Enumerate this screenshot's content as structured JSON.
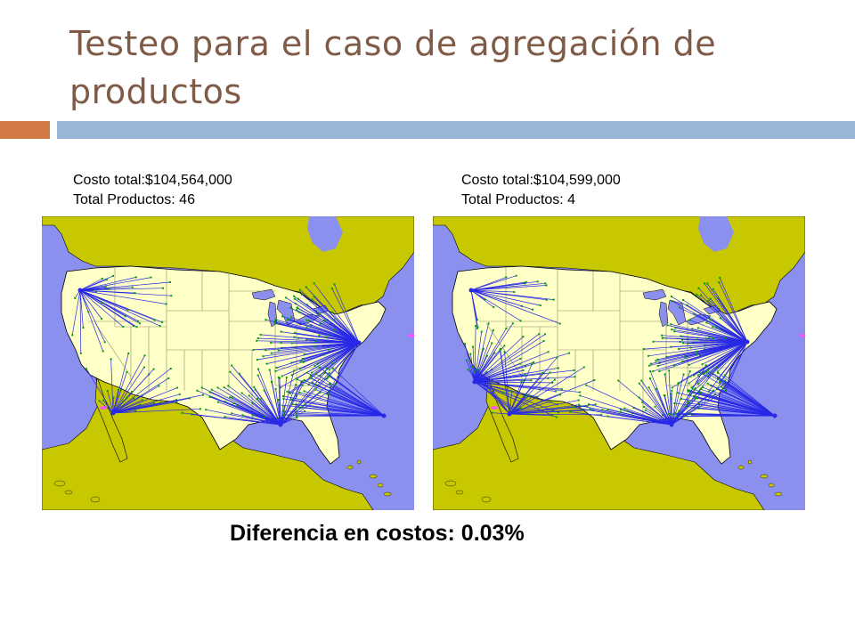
{
  "slide": {
    "title": "Testeo para el caso de agregación de productos",
    "difference_text": "Diferencia en costos: 0.03%"
  },
  "maps": [
    {
      "cost_label": "Costo total:$104,564,000",
      "products_label": "Total Productos: 46",
      "hubs": [
        {
          "lon": -122.3,
          "lat": 47.5,
          "spokes": 35
        },
        {
          "lon": -118.2,
          "lat": 34.0,
          "spokes": 35
        },
        {
          "lon": -87.6,
          "lat": 41.8,
          "spokes": 100
        },
        {
          "lon": -74.5,
          "lat": 40.7,
          "spokes": 55
        },
        {
          "lon": -97.3,
          "lat": 32.7,
          "spokes": 60
        },
        {
          "lon": -84.4,
          "lat": 33.7,
          "spokes": 60
        }
      ]
    },
    {
      "cost_label": "Costo total:$104,599,000",
      "products_label": "Total Productos: 4",
      "hubs": [
        {
          "lon": -122.3,
          "lat": 47.5,
          "spokes": 20
        },
        {
          "lon": -121.9,
          "lat": 37.4,
          "spokes": 50
        },
        {
          "lon": -117.6,
          "lat": 33.9,
          "spokes": 35
        },
        {
          "lon": -87.9,
          "lat": 41.9,
          "spokes": 100
        },
        {
          "lon": -76.0,
          "lat": 40.3,
          "spokes": 60
        },
        {
          "lon": -97.3,
          "lat": 32.7,
          "spokes": 55
        },
        {
          "lon": -84.4,
          "lat": 33.7,
          "spokes": 60
        }
      ]
    }
  ],
  "colors": {
    "ocean": "#8b90ef",
    "foreign_land": "#c8c800",
    "usa_land": "#ffffc8",
    "lakes": "#8b90ef",
    "spoke_line": "#2828e6",
    "customer_dot": "#00a000",
    "facility_marker": "#ff50ff"
  }
}
